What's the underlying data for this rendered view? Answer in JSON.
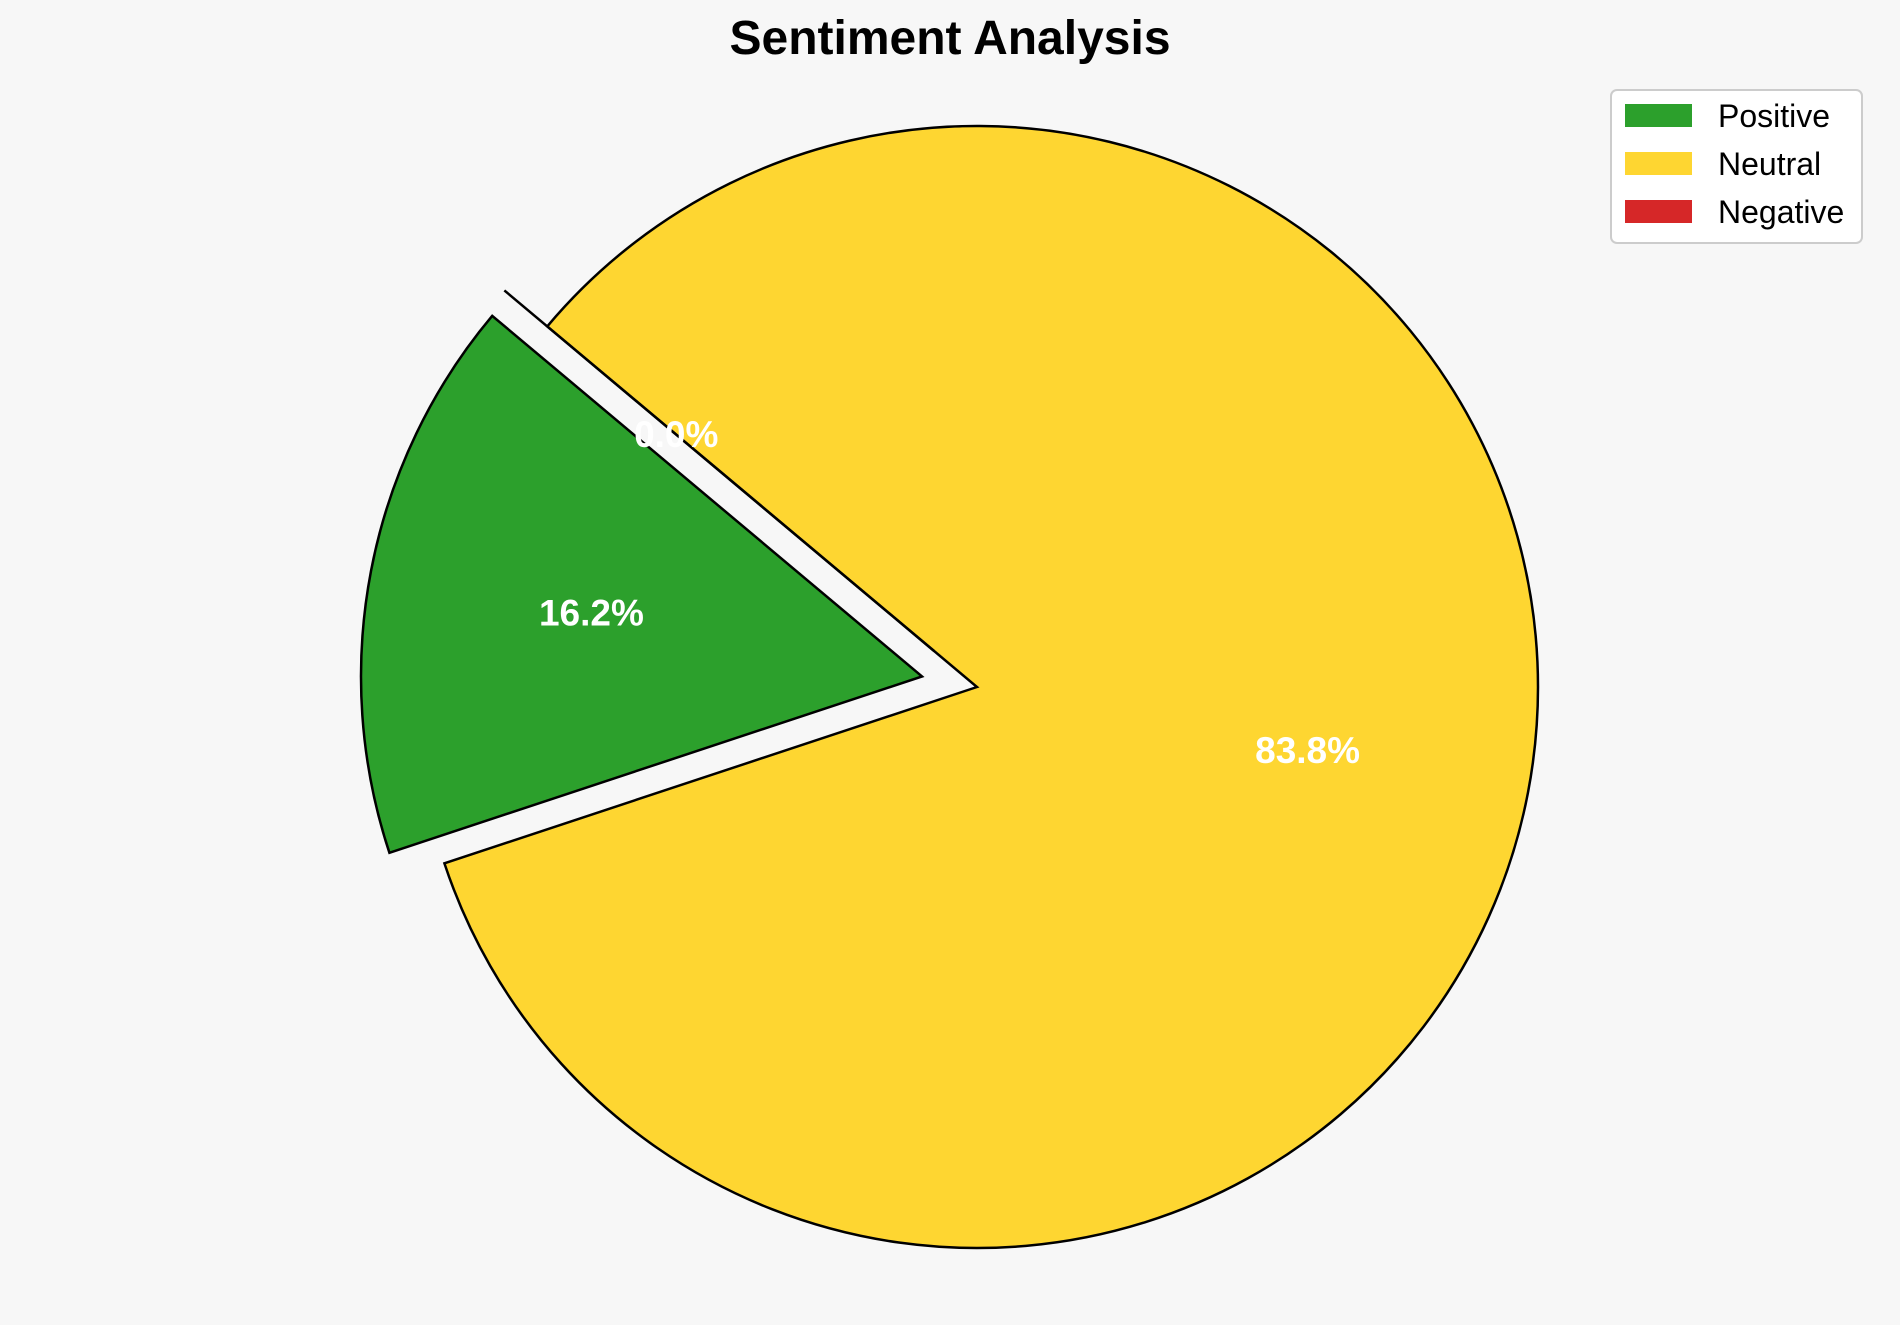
{
  "chart_data": {
    "type": "pie",
    "title": "Sentiment Analysis",
    "categories": [
      "Positive",
      "Neutral",
      "Negative"
    ],
    "values": [
      16.2,
      83.8,
      0.0
    ],
    "labels": [
      "16.2%",
      "83.8%",
      "0.0%"
    ],
    "colors": [
      "#2ca02c",
      "#fed631",
      "#d62728"
    ],
    "exploded": [
      true,
      false,
      true
    ],
    "legend_position": "top-right"
  }
}
